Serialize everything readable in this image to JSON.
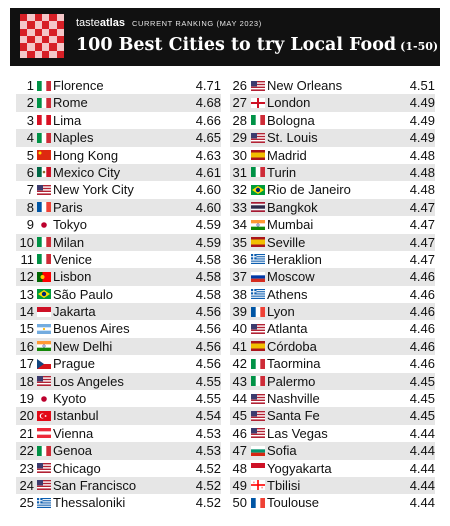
{
  "header": {
    "brand_light": "taste",
    "brand_bold": "atlas",
    "ranking": "CURRENT RANKING (MAY 2023)",
    "title": "100 Best Cities to try Local Food",
    "subtitle": "(1-50)",
    "logo_color": "#d71f26"
  },
  "left": [
    {
      "rank": "1",
      "flag": "italy",
      "city": "Florence",
      "score": "4.71"
    },
    {
      "rank": "2",
      "flag": "italy",
      "city": "Rome",
      "score": "4.68"
    },
    {
      "rank": "3",
      "flag": "peru",
      "city": "Lima",
      "score": "4.66"
    },
    {
      "rank": "4",
      "flag": "italy",
      "city": "Naples",
      "score": "4.65"
    },
    {
      "rank": "5",
      "flag": "china",
      "city": "Hong Kong",
      "score": "4.63"
    },
    {
      "rank": "6",
      "flag": "mexico",
      "city": "Mexico City",
      "score": "4.61"
    },
    {
      "rank": "7",
      "flag": "usa",
      "city": "New York City",
      "score": "4.60"
    },
    {
      "rank": "8",
      "flag": "france",
      "city": "Paris",
      "score": "4.60"
    },
    {
      "rank": "9",
      "flag": "japan",
      "city": "Tokyo",
      "score": "4.59"
    },
    {
      "rank": "10",
      "flag": "italy",
      "city": "Milan",
      "score": "4.59"
    },
    {
      "rank": "11",
      "flag": "italy",
      "city": "Venice",
      "score": "4.58"
    },
    {
      "rank": "12",
      "flag": "portugal",
      "city": "Lisbon",
      "score": "4.58"
    },
    {
      "rank": "13",
      "flag": "brazil",
      "city": "São Paulo",
      "score": "4.58"
    },
    {
      "rank": "14",
      "flag": "indonesia",
      "city": "Jakarta",
      "score": "4.56"
    },
    {
      "rank": "15",
      "flag": "argentina",
      "city": "Buenos Aires",
      "score": "4.56"
    },
    {
      "rank": "16",
      "flag": "india",
      "city": "New Delhi",
      "score": "4.56"
    },
    {
      "rank": "17",
      "flag": "czech",
      "city": "Prague",
      "score": "4.56"
    },
    {
      "rank": "18",
      "flag": "usa",
      "city": "Los Angeles",
      "score": "4.55"
    },
    {
      "rank": "19",
      "flag": "japan",
      "city": "Kyoto",
      "score": "4.55"
    },
    {
      "rank": "20",
      "flag": "turkey",
      "city": "Istanbul",
      "score": "4.54"
    },
    {
      "rank": "21",
      "flag": "austria",
      "city": "Vienna",
      "score": "4.53"
    },
    {
      "rank": "22",
      "flag": "italy",
      "city": "Genoa",
      "score": "4.53"
    },
    {
      "rank": "23",
      "flag": "usa",
      "city": "Chicago",
      "score": "4.52"
    },
    {
      "rank": "24",
      "flag": "usa",
      "city": "San Francisco",
      "score": "4.52"
    },
    {
      "rank": "25",
      "flag": "greece",
      "city": "Thessaloniki",
      "score": "4.52"
    }
  ],
  "right": [
    {
      "rank": "26",
      "flag": "usa",
      "city": "New Orleans",
      "score": "4.51"
    },
    {
      "rank": "27",
      "flag": "england",
      "city": "London",
      "score": "4.49"
    },
    {
      "rank": "28",
      "flag": "italy",
      "city": "Bologna",
      "score": "4.49"
    },
    {
      "rank": "29",
      "flag": "usa",
      "city": "St. Louis",
      "score": "4.49"
    },
    {
      "rank": "30",
      "flag": "spain",
      "city": "Madrid",
      "score": "4.48"
    },
    {
      "rank": "31",
      "flag": "italy",
      "city": "Turin",
      "score": "4.48"
    },
    {
      "rank": "32",
      "flag": "brazil",
      "city": "Rio de Janeiro",
      "score": "4.48"
    },
    {
      "rank": "33",
      "flag": "thailand",
      "city": "Bangkok",
      "score": "4.47"
    },
    {
      "rank": "34",
      "flag": "india",
      "city": "Mumbai",
      "score": "4.47"
    },
    {
      "rank": "35",
      "flag": "spain",
      "city": "Seville",
      "score": "4.47"
    },
    {
      "rank": "36",
      "flag": "greece",
      "city": "Heraklion",
      "score": "4.47"
    },
    {
      "rank": "37",
      "flag": "russia",
      "city": "Moscow",
      "score": "4.46"
    },
    {
      "rank": "38",
      "flag": "greece",
      "city": "Athens",
      "score": "4.46"
    },
    {
      "rank": "39",
      "flag": "france",
      "city": "Lyon",
      "score": "4.46"
    },
    {
      "rank": "40",
      "flag": "usa",
      "city": "Atlanta",
      "score": "4.46"
    },
    {
      "rank": "41",
      "flag": "spain",
      "city": "Córdoba",
      "score": "4.46"
    },
    {
      "rank": "42",
      "flag": "italy",
      "city": "Taormina",
      "score": "4.46"
    },
    {
      "rank": "43",
      "flag": "italy",
      "city": "Palermo",
      "score": "4.45"
    },
    {
      "rank": "44",
      "flag": "usa",
      "city": "Nashville",
      "score": "4.45"
    },
    {
      "rank": "45",
      "flag": "usa",
      "city": "Santa Fe",
      "score": "4.45"
    },
    {
      "rank": "46",
      "flag": "usa",
      "city": "Las Vegas",
      "score": "4.44"
    },
    {
      "rank": "47",
      "flag": "bulgaria",
      "city": "Sofia",
      "score": "4.44"
    },
    {
      "rank": "48",
      "flag": "indonesia",
      "city": "Yogyakarta",
      "score": "4.44"
    },
    {
      "rank": "49",
      "flag": "georgia",
      "city": "Tbilisi",
      "score": "4.44"
    },
    {
      "rank": "50",
      "flag": "france",
      "city": "Toulouse",
      "score": "4.44"
    }
  ]
}
